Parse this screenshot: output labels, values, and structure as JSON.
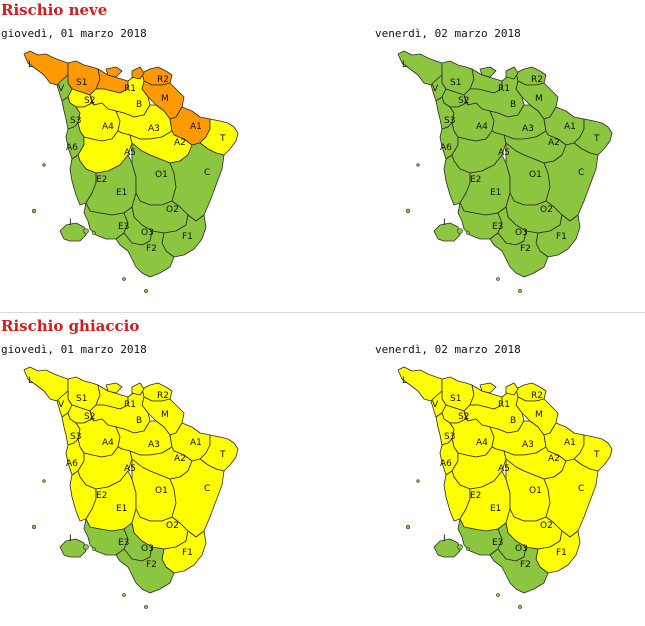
{
  "colors": {
    "green": "#8cc641",
    "yellow": "#ffff00",
    "orange": "#ff9900",
    "title_red": "#cc1f1f"
  },
  "zones": [
    "L",
    "S1",
    "V",
    "S2",
    "R1",
    "R2",
    "M",
    "B",
    "S3",
    "A4",
    "A3",
    "A6",
    "A5",
    "A1",
    "A2",
    "T",
    "E2",
    "E1",
    "O1",
    "C",
    "I",
    "E3",
    "O2",
    "O3",
    "F1",
    "F2"
  ],
  "panels": [
    {
      "title": "Rischio neve",
      "maps": [
        {
          "date": "giovedì, 01 marzo 2018",
          "levels": {
            "L": "orange",
            "S1": "orange",
            "V": "green",
            "S2": "yellow",
            "R1": "orange",
            "R2": "orange",
            "M": "orange",
            "B": "yellow",
            "S3": "green",
            "A4": "yellow",
            "A3": "yellow",
            "A6": "green",
            "A5": "yellow",
            "A1": "orange",
            "A2": "yellow",
            "T": "yellow",
            "E2": "green",
            "E1": "green",
            "O1": "green",
            "C": "green",
            "I": "green",
            "E3": "green",
            "O2": "green",
            "O3": "green",
            "F1": "green",
            "F2": "green"
          }
        },
        {
          "date": "venerdì, 02 marzo 2018",
          "levels": {
            "L": "green",
            "S1": "green",
            "V": "green",
            "S2": "green",
            "R1": "green",
            "R2": "green",
            "M": "green",
            "B": "green",
            "S3": "green",
            "A4": "green",
            "A3": "green",
            "A6": "green",
            "A5": "green",
            "A1": "green",
            "A2": "green",
            "T": "green",
            "E2": "green",
            "E1": "green",
            "O1": "green",
            "C": "green",
            "I": "green",
            "E3": "green",
            "O2": "green",
            "O3": "green",
            "F1": "green",
            "F2": "green"
          }
        }
      ]
    },
    {
      "title": "Rischio ghiaccio",
      "maps": [
        {
          "date": "giovedì, 01 marzo 2018",
          "levels": {
            "L": "yellow",
            "S1": "yellow",
            "V": "yellow",
            "S2": "yellow",
            "R1": "yellow",
            "R2": "yellow",
            "M": "yellow",
            "B": "yellow",
            "S3": "yellow",
            "A4": "yellow",
            "A3": "yellow",
            "A6": "yellow",
            "A5": "yellow",
            "A1": "yellow",
            "A2": "yellow",
            "T": "yellow",
            "E2": "yellow",
            "E1": "yellow",
            "O1": "yellow",
            "C": "yellow",
            "I": "green",
            "E3": "green",
            "O2": "yellow",
            "O3": "green",
            "F1": "yellow",
            "F2": "green"
          }
        },
        {
          "date": "venerdì, 02 marzo 2018",
          "levels": {
            "L": "yellow",
            "S1": "yellow",
            "V": "yellow",
            "S2": "yellow",
            "R1": "yellow",
            "R2": "yellow",
            "M": "yellow",
            "B": "yellow",
            "S3": "yellow",
            "A4": "yellow",
            "A3": "yellow",
            "A6": "yellow",
            "A5": "yellow",
            "A1": "yellow",
            "A2": "yellow",
            "T": "yellow",
            "E2": "yellow",
            "E1": "yellow",
            "O1": "yellow",
            "C": "yellow",
            "I": "green",
            "E3": "green",
            "O2": "yellow",
            "O3": "green",
            "F1": "yellow",
            "F2": "green"
          }
        }
      ]
    }
  ]
}
